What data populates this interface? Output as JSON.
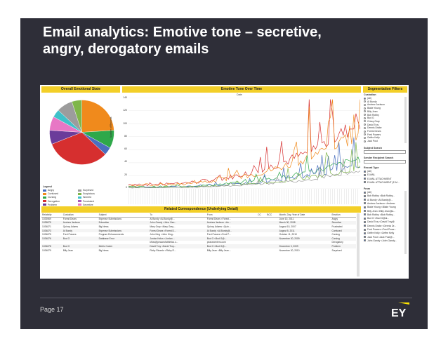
{
  "slide": {
    "title_line1": "Email analytics: Emotive tone – secretive,",
    "title_line2": "angry, derogatory emails",
    "page_label": "Page 17",
    "logo_text": "EY"
  },
  "colors": {
    "background": "#2e2e38",
    "header_yellow": "#f3cf28",
    "ey_yellow": "#ffe600"
  },
  "panels": {
    "overall_title": "Overall Emotional State",
    "tone_title": "Emotive Tone Over Time",
    "tone_subtitle": "Date",
    "segmentation_title": "Segmentation Filters",
    "related_title": "Related Correspondence (Underlying Detail)"
  },
  "legend": {
    "title": "Legend",
    "items": [
      {
        "label": "Angry",
        "color": "#4a6fbf"
      },
      {
        "label": "Surprised",
        "color": "#9c9c9c"
      },
      {
        "label": "Confused",
        "color": "#f08a1c"
      },
      {
        "label": "Suspicious",
        "color": "#7fb64a"
      },
      {
        "label": "Cursing",
        "color": "#2ea84a"
      },
      {
        "label": "Worried",
        "color": "#3fc1c9"
      },
      {
        "label": "Derogation",
        "color": "#d62f2f"
      },
      {
        "label": "Frustrated",
        "color": "#a65bb8"
      },
      {
        "label": "Problem",
        "color": "#6b3c9a"
      },
      {
        "label": "Secretive",
        "color": "#e877c5"
      }
    ]
  },
  "pie": [
    {
      "label": "Confused",
      "value": 0.24,
      "color": "#f08a1c"
    },
    {
      "label": "Cursing",
      "value": 0.09,
      "color": "#2ea84a"
    },
    {
      "label": "Angry",
      "value": 0.04,
      "color": "#4a6fbf"
    },
    {
      "label": "Derogation",
      "value": 0.32,
      "color": "#d62f2f"
    },
    {
      "label": "Problem",
      "value": 0.07,
      "color": "#6b3c9a"
    },
    {
      "label": "Secretive",
      "value": 0.07,
      "color": "#e877c5"
    },
    {
      "label": "Worried",
      "value": 0.04,
      "color": "#3fc1c9"
    },
    {
      "label": "Surprised",
      "value": 0.08,
      "color": "#9c9c9c"
    },
    {
      "label": "Suspicious",
      "value": 0.05,
      "color": "#7fb64a"
    }
  ],
  "tone_axis": {
    "ylabel": "Number of Records",
    "yticks": [
      "140",
      "120",
      "100",
      "80",
      "60",
      "40",
      "20",
      "0"
    ]
  },
  "chart_series": [
    {
      "name": "Derogation",
      "color": "#d62f2f",
      "amp": 1.0
    },
    {
      "name": "Confused",
      "color": "#f08a1c",
      "amp": 0.85
    },
    {
      "name": "Cursing",
      "color": "#2ea84a",
      "amp": 0.45
    },
    {
      "name": "Angry",
      "color": "#4a6fbf",
      "amp": 0.35
    },
    {
      "name": "Suspicious",
      "color": "#7fb64a",
      "amp": 0.3
    },
    {
      "name": "Surprised",
      "color": "#9c9c9c",
      "amp": 0.25
    }
  ],
  "segmentation": {
    "custodian_label": "Custodian",
    "custodians": [
      {
        "name": "(All)",
        "selected": true
      },
      {
        "name": "Al Bundy",
        "selected": false
      },
      {
        "name": "Andrew Jackson",
        "selected": false
      },
      {
        "name": "Blake Young",
        "selected": false
      },
      {
        "name": "Billy Jean",
        "selected": false
      },
      {
        "name": "Bob Robby",
        "selected": false
      },
      {
        "name": "Bud G",
        "selected": false
      },
      {
        "name": "Crissy Gray",
        "selected": false
      },
      {
        "name": "David Troy",
        "selected": false
      },
      {
        "name": "Dennis Drake",
        "selected": false
      },
      {
        "name": "Forest Dears",
        "selected": false
      },
      {
        "name": "Fred Powers",
        "selected": false
      },
      {
        "name": "Geffre Kelly",
        "selected": false
      },
      {
        "name": "Jack Post",
        "selected": false
      }
    ],
    "subject_search_label": "Subject Search",
    "sender_search_label": "Sender Recipient Search",
    "record_type_label": "Record Type",
    "record_types": [
      {
        "name": "(All)",
        "checked": true
      },
      {
        "name": "E-MAIL",
        "checked": true
      },
      {
        "name": "E-MAIL ATTACHMENT",
        "checked": true
      },
      {
        "name": "E-MAIL ATTACHMENT (E-M...",
        "checked": true
      }
    ],
    "from_label": "From",
    "from_list": [
      {
        "name": "(All)",
        "checked": true
      },
      {
        "name": "Bob Robby <Bob Robby...",
        "checked": true
      },
      {
        "name": "Al Bundy <Al.Bundy@...",
        "checked": true
      },
      {
        "name": "Andrew Jackson <Andrew",
        "checked": true
      },
      {
        "name": "Blake Young <Blake Young",
        "checked": true
      },
      {
        "name": "Billy Jean <Billy Jean@a...",
        "checked": true
      },
      {
        "name": "Bob Robby <Bob Robby...",
        "checked": true
      },
      {
        "name": "Bud G <Bud G@al...",
        "checked": true
      },
      {
        "name": "David Troy <David Troy@",
        "checked": true
      },
      {
        "name": "Dennis Drake <Dennis Dr...",
        "checked": true
      },
      {
        "name": "Fred Powers <Fred Powe...",
        "checked": true
      },
      {
        "name": "Geffre Kelly <Geffre Kelly",
        "checked": true
      },
      {
        "name": "Jack Post <Jack Post@...",
        "checked": true
      },
      {
        "name": "John Gandy <John Gandy...",
        "checked": true
      }
    ]
  },
  "table": {
    "columns": [
      "Relativity",
      "Custodian",
      "Subject",
      "To",
      "From",
      "CC",
      "BCC",
      "Month, Day, Year of Date",
      "Emotion"
    ],
    "rows": [
      [
        "1033969",
        "Forest Dears",
        "Expense Submissions",
        "Al Bundy <Al.Bundy@...",
        "Forest Dears <Forest...",
        "",
        "",
        "June 10, 2011",
        "Angry"
      ],
      [
        "1035875",
        "Andrew Jackson",
        "Education",
        "John Gandy <John Gan...",
        "Andrew Jackson <An...",
        "",
        "",
        "March 30, 2008",
        "Secretive"
      ],
      [
        "1034871",
        "Quincy Adams",
        "Big News",
        "Mary Gray <Mary Gray...",
        "Quincy Adams <Quin...",
        "",
        "",
        "August 15, 2007",
        "Frustrated"
      ],
      [
        "1034873",
        "Al Bundy",
        "Expense Submissions",
        "Forest Dears <Forest D...",
        "Al Bundy <Al.Bundy@...",
        "",
        "",
        "August 5, 2011",
        "Confused"
      ],
      [
        "1034875",
        "Fred Powers",
        "Program Enhancements",
        "John King <John King...",
        "Fred Powers <Fred P...",
        "",
        "",
        "October 11, 2010",
        "Cursing"
      ],
      [
        "1034876",
        "Bud G",
        "Database Error",
        "Jordan Kelus <Jordan ...",
        "Bud G <Bud G@...",
        "",
        "",
        "November 30, 2009",
        "Cursing"
      ],
      [
        "",
        "",
        "",
        "kflow@peaceofathletics.c...",
        "peacecenters.com",
        "",
        "",
        "",
        "Derogatory"
      ],
      [
        "1034878",
        "Bud G",
        "Metric Cooler",
        "David Troy <David Troy...",
        "Bud G <Bud G@...",
        "",
        "",
        "December 3, 2009",
        "Problem"
      ],
      [
        "1034879",
        "Billy Jean",
        "Big News",
        "Ricky Ricardo <Ricky R...",
        "Billy Jean <Billy Jean...",
        "",
        "",
        "November 30, 2010",
        "Surprised"
      ]
    ]
  }
}
